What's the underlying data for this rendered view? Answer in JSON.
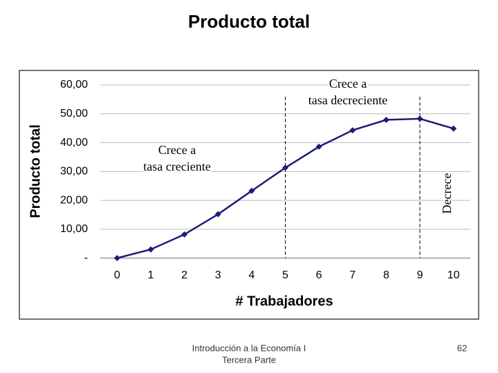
{
  "slide": {
    "title": "Producto total",
    "footer": [
      "Introducción a la Economía I",
      "Tercera Parte"
    ],
    "page_number": "62"
  },
  "chart_data": {
    "type": "line",
    "x_label": "# Trabajadores",
    "y_label": "Producto total",
    "x": [
      0,
      1,
      2,
      3,
      4,
      5,
      6,
      7,
      8,
      9,
      10
    ],
    "series": [
      {
        "name": "Producto total",
        "color": "#1c1c78",
        "values": [
          0,
          3,
          8.2,
          15.2,
          23.3,
          31.3,
          38.6,
          44.3,
          47.9,
          48.3,
          44.9
        ]
      }
    ],
    "xlim": [
      -0.5,
      10.5
    ],
    "xticks": [
      0,
      1,
      2,
      3,
      4,
      5,
      6,
      7,
      8,
      9,
      10
    ],
    "ylim": [
      -2,
      60
    ],
    "yticks": [
      {
        "value": 0,
        "label": "-"
      },
      {
        "value": 10,
        "label": "10,00"
      },
      {
        "value": 20,
        "label": "20,00"
      },
      {
        "value": 30,
        "label": "30,00"
      },
      {
        "value": 40,
        "label": "40,00"
      },
      {
        "value": 50,
        "label": "50,00"
      },
      {
        "value": 60,
        "label": "60,00"
      }
    ],
    "grid": true,
    "dividers": [
      5,
      9
    ],
    "annotations": [
      {
        "lines": [
          "Crece a",
          "tasa creciente"
        ]
      },
      {
        "lines": [
          "Crece a",
          "tasa decreciente"
        ]
      },
      {
        "lines": [
          "Decrece"
        ]
      }
    ]
  }
}
